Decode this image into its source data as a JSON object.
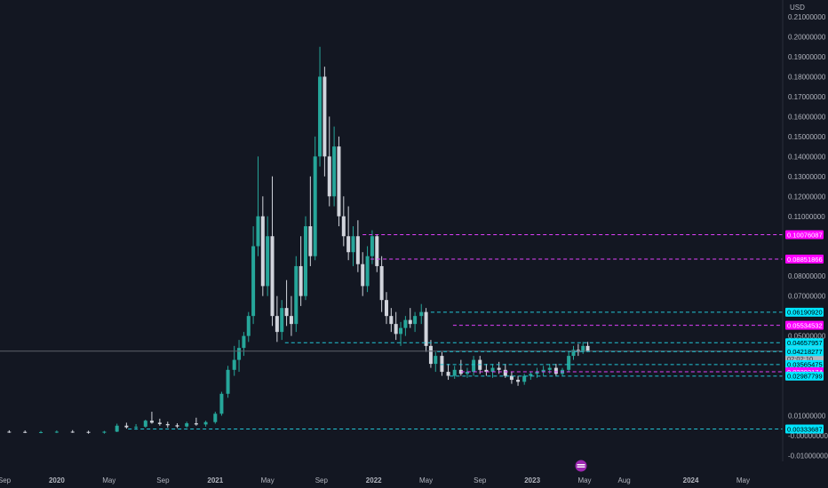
{
  "colors": {
    "background": "#131722",
    "candle_up": "#26a69a",
    "candle_down": "#d1d4dc",
    "cyan_line": "#22c5d5",
    "magenta_line": "#e040fb",
    "cyan_badge": "#00e5ff",
    "magenta_badge": "#ff00ff",
    "current_badge": "#b2b5be",
    "text": "#b2b5be"
  },
  "logo_icon": "tradingview-logo-icon",
  "chart_data": {
    "type": "candlestick",
    "y_unit": "USD",
    "ylim": [
      -0.011,
      0.213
    ],
    "log_scale": false,
    "grid": false,
    "y_ticks": [
      "0.21000000",
      "0.20000000",
      "0.19000000",
      "0.18000000",
      "0.17000000",
      "0.16000000",
      "0.15000000",
      "0.14000000",
      "0.13000000",
      "0.12000000",
      "0.11000000",
      "0.08000000",
      "0.07000000",
      "0.05000000",
      "0.01000000",
      "-0.00000000",
      "-0.01000000"
    ],
    "y_tick_values": [
      0.21,
      0.2,
      0.19,
      0.18,
      0.17,
      0.16,
      0.15,
      0.14,
      0.13,
      0.12,
      0.11,
      0.08,
      0.07,
      0.05,
      0.01,
      0.0,
      -0.01
    ],
    "x_labels": [
      {
        "label": "Sep",
        "t": 2019.67,
        "year": false
      },
      {
        "label": "2020",
        "t": 2020.0,
        "year": true
      },
      {
        "label": "May",
        "t": 2020.33,
        "year": false
      },
      {
        "label": "Sep",
        "t": 2020.67,
        "year": false
      },
      {
        "label": "2021",
        "t": 2021.0,
        "year": true
      },
      {
        "label": "May",
        "t": 2021.33,
        "year": false
      },
      {
        "label": "Sep",
        "t": 2021.67,
        "year": false
      },
      {
        "label": "2022",
        "t": 2022.0,
        "year": true
      },
      {
        "label": "May",
        "t": 2022.33,
        "year": false
      },
      {
        "label": "Sep",
        "t": 2022.67,
        "year": false
      },
      {
        "label": "2023",
        "t": 2023.0,
        "year": true
      },
      {
        "label": "May",
        "t": 2023.33,
        "year": false
      },
      {
        "label": "Aug",
        "t": 2023.58,
        "year": false
      },
      {
        "label": "2024",
        "t": 2024.0,
        "year": true
      },
      {
        "label": "May",
        "t": 2024.33,
        "year": false
      }
    ],
    "horizontal_levels": [
      {
        "value": 0.10076087,
        "label": "0.10076087",
        "color": "magenta",
        "x_start": 2021.93
      },
      {
        "value": 0.08851866,
        "label": "0.08851866",
        "color": "magenta",
        "x_start": 2021.98
      },
      {
        "value": 0.0619092,
        "label": "0.06190920",
        "color": "cyan",
        "x_start": 2022.36
      },
      {
        "value": 0.05534532,
        "label": "0.05534532",
        "color": "magenta",
        "x_start": 2022.5
      },
      {
        "value": 0.04657957,
        "label": "0.04657957",
        "color": "cyan",
        "x_start": 2021.44
      },
      {
        "value": 0.042396,
        "label": "0.04239600",
        "color": "current",
        "x_start": 2019.0,
        "countdown": "02:02:10"
      },
      {
        "value": 0.04218277,
        "label": "0.04218277",
        "color": "cyan",
        "x_start": 2022.4
      },
      {
        "value": 0.03565475,
        "label": "0.03565475",
        "color": "cyan",
        "x_start": 2022.42
      },
      {
        "value": 0.03203174,
        "label": "0.03203174",
        "color": "magenta",
        "x_start": 2022.55
      },
      {
        "value": 0.02987799,
        "label": "0.02987799",
        "color": "cyan",
        "x_start": 2022.48
      },
      {
        "value": 0.00333687,
        "label": "0.00333687",
        "color": "cyan",
        "x_start": 2020.45
      }
    ],
    "series": [
      {
        "t": 2019.2,
        "o": 0.0015,
        "h": 0.0022,
        "l": 0.0008,
        "c": 0.0014
      },
      {
        "t": 2019.3,
        "o": 0.0014,
        "h": 0.0025,
        "l": 0.0009,
        "c": 0.0019
      },
      {
        "t": 2019.4,
        "o": 0.0019,
        "h": 0.0028,
        "l": 0.0012,
        "c": 0.0021
      },
      {
        "t": 2019.5,
        "o": 0.0021,
        "h": 0.003,
        "l": 0.0015,
        "c": 0.0018
      },
      {
        "t": 2019.6,
        "o": 0.0018,
        "h": 0.0026,
        "l": 0.0012,
        "c": 0.002
      },
      {
        "t": 2019.7,
        "o": 0.002,
        "h": 0.0027,
        "l": 0.0014,
        "c": 0.0019
      },
      {
        "t": 2019.8,
        "o": 0.0019,
        "h": 0.0026,
        "l": 0.0013,
        "c": 0.0017
      },
      {
        "t": 2019.9,
        "o": 0.0017,
        "h": 0.0024,
        "l": 0.0012,
        "c": 0.0018
      },
      {
        "t": 2020.0,
        "o": 0.0018,
        "h": 0.0026,
        "l": 0.0013,
        "c": 0.002
      },
      {
        "t": 2020.1,
        "o": 0.002,
        "h": 0.0028,
        "l": 0.0014,
        "c": 0.0019
      },
      {
        "t": 2020.2,
        "o": 0.0019,
        "h": 0.0025,
        "l": 0.001,
        "c": 0.0015
      },
      {
        "t": 2020.3,
        "o": 0.0015,
        "h": 0.0024,
        "l": 0.001,
        "c": 0.002
      },
      {
        "t": 2020.38,
        "o": 0.002,
        "h": 0.006,
        "l": 0.0018,
        "c": 0.005
      },
      {
        "t": 2020.44,
        "o": 0.005,
        "h": 0.0065,
        "l": 0.0035,
        "c": 0.0042
      },
      {
        "t": 2020.5,
        "o": 0.0042,
        "h": 0.0058,
        "l": 0.003,
        "c": 0.0045
      },
      {
        "t": 2020.56,
        "o": 0.0045,
        "h": 0.008,
        "l": 0.004,
        "c": 0.0075
      },
      {
        "t": 2020.6,
        "o": 0.0075,
        "h": 0.012,
        "l": 0.006,
        "c": 0.0065
      },
      {
        "t": 2020.65,
        "o": 0.0065,
        "h": 0.0085,
        "l": 0.005,
        "c": 0.0058
      },
      {
        "t": 2020.7,
        "o": 0.0058,
        "h": 0.007,
        "l": 0.004,
        "c": 0.0052
      },
      {
        "t": 2020.76,
        "o": 0.0052,
        "h": 0.0062,
        "l": 0.0038,
        "c": 0.0046
      },
      {
        "t": 2020.82,
        "o": 0.0046,
        "h": 0.007,
        "l": 0.004,
        "c": 0.0062
      },
      {
        "t": 2020.88,
        "o": 0.0062,
        "h": 0.009,
        "l": 0.005,
        "c": 0.0056
      },
      {
        "t": 2020.94,
        "o": 0.0056,
        "h": 0.0075,
        "l": 0.0045,
        "c": 0.0068
      },
      {
        "t": 2021.0,
        "o": 0.0068,
        "h": 0.012,
        "l": 0.006,
        "c": 0.011
      },
      {
        "t": 2021.04,
        "o": 0.011,
        "h": 0.022,
        "l": 0.01,
        "c": 0.021
      },
      {
        "t": 2021.08,
        "o": 0.021,
        "h": 0.035,
        "l": 0.019,
        "c": 0.033
      },
      {
        "t": 2021.12,
        "o": 0.033,
        "h": 0.045,
        "l": 0.03,
        "c": 0.038
      },
      {
        "t": 2021.15,
        "o": 0.038,
        "h": 0.048,
        "l": 0.032,
        "c": 0.044
      },
      {
        "t": 2021.18,
        "o": 0.044,
        "h": 0.052,
        "l": 0.04,
        "c": 0.05
      },
      {
        "t": 2021.21,
        "o": 0.05,
        "h": 0.062,
        "l": 0.047,
        "c": 0.06
      },
      {
        "t": 2021.24,
        "o": 0.06,
        "h": 0.105,
        "l": 0.056,
        "c": 0.095
      },
      {
        "t": 2021.27,
        "o": 0.095,
        "h": 0.14,
        "l": 0.09,
        "c": 0.11
      },
      {
        "t": 2021.3,
        "o": 0.11,
        "h": 0.12,
        "l": 0.07,
        "c": 0.075
      },
      {
        "t": 2021.33,
        "o": 0.075,
        "h": 0.11,
        "l": 0.07,
        "c": 0.1
      },
      {
        "t": 2021.36,
        "o": 0.1,
        "h": 0.13,
        "l": 0.055,
        "c": 0.06
      },
      {
        "t": 2021.39,
        "o": 0.06,
        "h": 0.07,
        "l": 0.047,
        "c": 0.052
      },
      {
        "t": 2021.42,
        "o": 0.052,
        "h": 0.068,
        "l": 0.048,
        "c": 0.064
      },
      {
        "t": 2021.45,
        "o": 0.064,
        "h": 0.078,
        "l": 0.055,
        "c": 0.06
      },
      {
        "t": 2021.48,
        "o": 0.06,
        "h": 0.07,
        "l": 0.05,
        "c": 0.056
      },
      {
        "t": 2021.51,
        "o": 0.056,
        "h": 0.09,
        "l": 0.052,
        "c": 0.085
      },
      {
        "t": 2021.54,
        "o": 0.085,
        "h": 0.1,
        "l": 0.065,
        "c": 0.07
      },
      {
        "t": 2021.57,
        "o": 0.07,
        "h": 0.11,
        "l": 0.068,
        "c": 0.105
      },
      {
        "t": 2021.6,
        "o": 0.105,
        "h": 0.13,
        "l": 0.085,
        "c": 0.09
      },
      {
        "t": 2021.63,
        "o": 0.09,
        "h": 0.15,
        "l": 0.088,
        "c": 0.14
      },
      {
        "t": 2021.66,
        "o": 0.14,
        "h": 0.195,
        "l": 0.135,
        "c": 0.18
      },
      {
        "t": 2021.69,
        "o": 0.18,
        "h": 0.185,
        "l": 0.13,
        "c": 0.14
      },
      {
        "t": 2021.72,
        "o": 0.14,
        "h": 0.16,
        "l": 0.115,
        "c": 0.12
      },
      {
        "t": 2021.75,
        "o": 0.12,
        "h": 0.155,
        "l": 0.115,
        "c": 0.145
      },
      {
        "t": 2021.78,
        "o": 0.145,
        "h": 0.15,
        "l": 0.105,
        "c": 0.11
      },
      {
        "t": 2021.81,
        "o": 0.11,
        "h": 0.12,
        "l": 0.095,
        "c": 0.1
      },
      {
        "t": 2021.84,
        "o": 0.1,
        "h": 0.115,
        "l": 0.088,
        "c": 0.092
      },
      {
        "t": 2021.87,
        "o": 0.092,
        "h": 0.105,
        "l": 0.085,
        "c": 0.1
      },
      {
        "t": 2021.9,
        "o": 0.1,
        "h": 0.108,
        "l": 0.082,
        "c": 0.086
      },
      {
        "t": 2021.93,
        "o": 0.086,
        "h": 0.092,
        "l": 0.07,
        "c": 0.075
      },
      {
        "t": 2021.96,
        "o": 0.075,
        "h": 0.095,
        "l": 0.072,
        "c": 0.09
      },
      {
        "t": 2021.99,
        "o": 0.09,
        "h": 0.103,
        "l": 0.086,
        "c": 0.1
      },
      {
        "t": 2022.02,
        "o": 0.1,
        "h": 0.101,
        "l": 0.082,
        "c": 0.085
      },
      {
        "t": 2022.05,
        "o": 0.085,
        "h": 0.09,
        "l": 0.062,
        "c": 0.068
      },
      {
        "t": 2022.08,
        "o": 0.068,
        "h": 0.072,
        "l": 0.056,
        "c": 0.06
      },
      {
        "t": 2022.11,
        "o": 0.06,
        "h": 0.064,
        "l": 0.052,
        "c": 0.056
      },
      {
        "t": 2022.14,
        "o": 0.056,
        "h": 0.062,
        "l": 0.048,
        "c": 0.051
      },
      {
        "t": 2022.17,
        "o": 0.051,
        "h": 0.057,
        "l": 0.045,
        "c": 0.054
      },
      {
        "t": 2022.2,
        "o": 0.054,
        "h": 0.06,
        "l": 0.05,
        "c": 0.058
      },
      {
        "t": 2022.23,
        "o": 0.058,
        "h": 0.064,
        "l": 0.054,
        "c": 0.056
      },
      {
        "t": 2022.26,
        "o": 0.056,
        "h": 0.062,
        "l": 0.052,
        "c": 0.06
      },
      {
        "t": 2022.3,
        "o": 0.06,
        "h": 0.066,
        "l": 0.056,
        "c": 0.062
      },
      {
        "t": 2022.33,
        "o": 0.062,
        "h": 0.064,
        "l": 0.042,
        "c": 0.045
      },
      {
        "t": 2022.36,
        "o": 0.045,
        "h": 0.048,
        "l": 0.034,
        "c": 0.036
      },
      {
        "t": 2022.39,
        "o": 0.036,
        "h": 0.042,
        "l": 0.032,
        "c": 0.04
      },
      {
        "t": 2022.43,
        "o": 0.04,
        "h": 0.042,
        "l": 0.03,
        "c": 0.032
      },
      {
        "t": 2022.47,
        "o": 0.032,
        "h": 0.036,
        "l": 0.028,
        "c": 0.03
      },
      {
        "t": 2022.51,
        "o": 0.03,
        "h": 0.035,
        "l": 0.0285,
        "c": 0.033
      },
      {
        "t": 2022.55,
        "o": 0.033,
        "h": 0.038,
        "l": 0.03,
        "c": 0.031
      },
      {
        "t": 2022.59,
        "o": 0.031,
        "h": 0.034,
        "l": 0.029,
        "c": 0.032
      },
      {
        "t": 2022.63,
        "o": 0.032,
        "h": 0.04,
        "l": 0.03,
        "c": 0.038
      },
      {
        "t": 2022.67,
        "o": 0.038,
        "h": 0.04,
        "l": 0.031,
        "c": 0.033
      },
      {
        "t": 2022.71,
        "o": 0.033,
        "h": 0.036,
        "l": 0.03,
        "c": 0.032
      },
      {
        "t": 2022.75,
        "o": 0.032,
        "h": 0.036,
        "l": 0.029,
        "c": 0.034
      },
      {
        "t": 2022.79,
        "o": 0.034,
        "h": 0.037,
        "l": 0.031,
        "c": 0.033
      },
      {
        "t": 2022.83,
        "o": 0.033,
        "h": 0.036,
        "l": 0.029,
        "c": 0.03
      },
      {
        "t": 2022.87,
        "o": 0.03,
        "h": 0.032,
        "l": 0.026,
        "c": 0.028
      },
      {
        "t": 2022.91,
        "o": 0.028,
        "h": 0.03,
        "l": 0.025,
        "c": 0.027
      },
      {
        "t": 2022.95,
        "o": 0.027,
        "h": 0.031,
        "l": 0.0255,
        "c": 0.03
      },
      {
        "t": 2022.99,
        "o": 0.03,
        "h": 0.032,
        "l": 0.028,
        "c": 0.031
      },
      {
        "t": 2023.03,
        "o": 0.031,
        "h": 0.034,
        "l": 0.029,
        "c": 0.032
      },
      {
        "t": 2023.07,
        "o": 0.032,
        "h": 0.035,
        "l": 0.03,
        "c": 0.033
      },
      {
        "t": 2023.11,
        "o": 0.033,
        "h": 0.036,
        "l": 0.031,
        "c": 0.034
      },
      {
        "t": 2023.15,
        "o": 0.034,
        "h": 0.036,
        "l": 0.03,
        "c": 0.031
      },
      {
        "t": 2023.19,
        "o": 0.031,
        "h": 0.034,
        "l": 0.03,
        "c": 0.033
      },
      {
        "t": 2023.23,
        "o": 0.033,
        "h": 0.042,
        "l": 0.032,
        "c": 0.04
      },
      {
        "t": 2023.26,
        "o": 0.04,
        "h": 0.045,
        "l": 0.038,
        "c": 0.043
      },
      {
        "t": 2023.29,
        "o": 0.043,
        "h": 0.046,
        "l": 0.04,
        "c": 0.042
      },
      {
        "t": 2023.32,
        "o": 0.042,
        "h": 0.047,
        "l": 0.041,
        "c": 0.045
      },
      {
        "t": 2023.35,
        "o": 0.045,
        "h": 0.047,
        "l": 0.042,
        "c": 0.0424
      }
    ]
  }
}
